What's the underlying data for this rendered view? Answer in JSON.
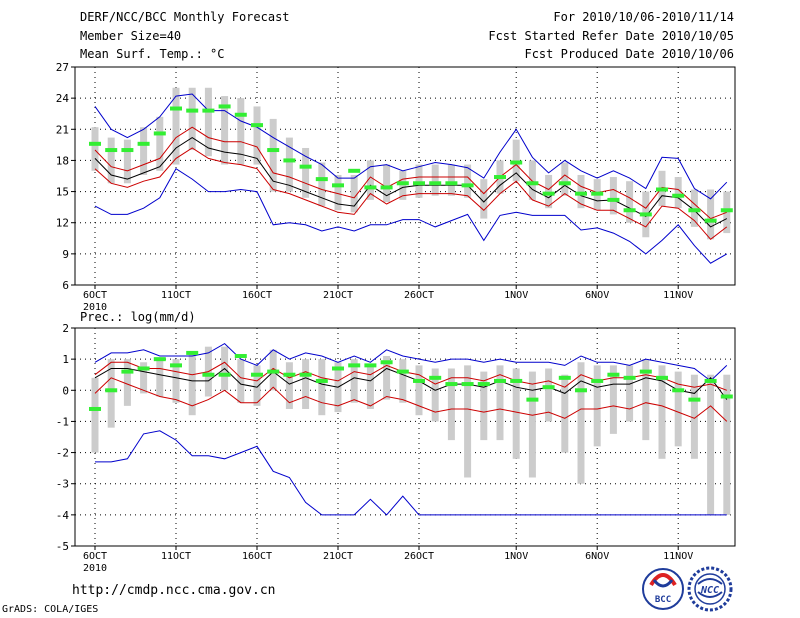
{
  "header": {
    "title": "DERF/NCC/BCC Monthly Forecast",
    "member_size": "Member Size=40",
    "variable": "Mean Surf. Temp.: °C",
    "period": "For 2010/10/06-2010/11/14",
    "started": "Fcst Started Refer Date 2010/10/05",
    "produced": "Fcst Produced Date 2010/10/06"
  },
  "footer": {
    "url": "http://cmdp.ncc.cma.gov.cn",
    "grads": "GrADS: COLA/IGES",
    "logo_left": "BCC",
    "logo_right": "NCC"
  },
  "colors": {
    "envelope": "#0000cc",
    "spread": "#cc0000",
    "mean": "#000000",
    "box": "#cccccc",
    "obs": "#33ee33"
  },
  "chart_data": [
    {
      "type": "line",
      "title": "Mean Surf. Temp.: °C",
      "xlabel": "",
      "ylabel": "",
      "ylim": [
        6,
        27
      ],
      "yticks": [
        6,
        9,
        12,
        15,
        18,
        21,
        24,
        27
      ],
      "grid": true,
      "xticks": [
        {
          "day": 0,
          "label": "6OCT",
          "sub": "2010"
        },
        {
          "day": 5,
          "label": "11OCT"
        },
        {
          "day": 10,
          "label": "16OCT"
        },
        {
          "day": 15,
          "label": "21OCT"
        },
        {
          "day": 20,
          "label": "26OCT"
        },
        {
          "day": 26,
          "label": "1NOV"
        },
        {
          "day": 31,
          "label": "6NOV"
        },
        {
          "day": 36,
          "label": "11NOV"
        }
      ],
      "series": [
        {
          "name": "max",
          "color": "#0000cc",
          "values": [
            23.2,
            21.0,
            20.2,
            21.0,
            22.2,
            24.2,
            24.4,
            22.8,
            22.8,
            21.8,
            21.2,
            20.2,
            19.3,
            18.4,
            17.6,
            16.3,
            16.3,
            17.4,
            17.6,
            17.0,
            17.4,
            17.8,
            17.6,
            17.3,
            16.3,
            18.8,
            21.0,
            18.3,
            16.8,
            18.0,
            17.0,
            16.3,
            17.0,
            16.3,
            15.3,
            18.3,
            18.2,
            15.3,
            14.3,
            15.9
          ]
        },
        {
          "name": "upper",
          "color": "#cc0000",
          "values": [
            19.0,
            17.4,
            17.0,
            17.6,
            18.2,
            20.2,
            21.2,
            20.2,
            19.8,
            19.8,
            19.3,
            16.8,
            16.4,
            15.8,
            15.2,
            14.8,
            14.4,
            16.4,
            15.4,
            16.2,
            16.4,
            16.4,
            16.4,
            16.4,
            14.8,
            16.4,
            17.6,
            16.0,
            15.2,
            16.6,
            15.5,
            14.9,
            15.2,
            14.4,
            13.4,
            15.4,
            15.2,
            13.8,
            12.4,
            13.0
          ]
        },
        {
          "name": "mean",
          "color": "#000000",
          "values": [
            18.2,
            16.6,
            16.2,
            16.8,
            17.4,
            19.2,
            20.2,
            19.2,
            18.8,
            18.6,
            18.2,
            16.0,
            15.6,
            15.0,
            14.4,
            13.8,
            13.6,
            15.6,
            14.6,
            15.4,
            15.6,
            15.6,
            15.6,
            15.6,
            14.0,
            15.6,
            16.8,
            15.2,
            14.4,
            15.6,
            14.6,
            14.1,
            14.2,
            13.4,
            12.6,
            14.6,
            14.4,
            13.2,
            11.6,
            12.4
          ]
        },
        {
          "name": "lower",
          "color": "#cc0000",
          "values": [
            17.2,
            15.8,
            15.4,
            16.0,
            16.4,
            18.2,
            19.2,
            18.2,
            17.8,
            17.6,
            17.2,
            15.2,
            14.8,
            14.2,
            13.6,
            13.0,
            12.8,
            14.8,
            13.8,
            14.6,
            14.8,
            14.8,
            14.8,
            14.6,
            13.2,
            14.8,
            16.0,
            14.2,
            13.6,
            14.8,
            13.8,
            13.2,
            13.2,
            12.4,
            11.6,
            13.6,
            13.4,
            12.2,
            10.4,
            11.6
          ]
        },
        {
          "name": "min",
          "color": "#0000cc",
          "values": [
            13.6,
            12.8,
            12.8,
            13.4,
            14.4,
            17.2,
            16.2,
            15.0,
            15.0,
            15.2,
            15.0,
            11.8,
            12.0,
            11.8,
            11.2,
            11.6,
            11.2,
            11.8,
            11.8,
            12.3,
            12.3,
            11.6,
            12.2,
            12.8,
            10.3,
            12.7,
            13.0,
            12.7,
            12.7,
            12.7,
            11.3,
            11.5,
            11.0,
            10.2,
            9.0,
            10.3,
            11.8,
            9.8,
            8.1,
            9.0
          ]
        }
      ],
      "boxes": {
        "top": [
          21.2,
          20.2,
          20.0,
          21.2,
          22.2,
          25.0,
          25.0,
          25.0,
          24.2,
          24.0,
          23.2,
          22.0,
          20.2,
          19.2,
          17.8,
          16.6,
          16.6,
          18.0,
          17.6,
          17.0,
          17.6,
          17.6,
          17.6,
          17.6,
          16.2,
          18.0,
          20.0,
          18.0,
          16.6,
          17.8,
          16.6,
          16.2,
          16.4,
          16.0,
          15.0,
          17.0,
          16.4,
          15.2,
          15.2,
          15.0
        ],
        "bottom": [
          17.0,
          15.8,
          15.8,
          16.6,
          17.0,
          17.6,
          19.0,
          18.4,
          17.6,
          17.6,
          17.6,
          15.0,
          15.0,
          14.4,
          13.6,
          13.2,
          13.0,
          14.2,
          14.0,
          14.2,
          14.4,
          14.6,
          14.6,
          14.4,
          12.4,
          14.8,
          16.0,
          14.2,
          13.4,
          14.6,
          13.4,
          13.2,
          12.8,
          12.0,
          10.6,
          13.6,
          13.4,
          11.6,
          10.4,
          11.0
        ]
      },
      "obs": [
        19.6,
        19.0,
        19.0,
        19.6,
        20.6,
        23.0,
        22.8,
        22.8,
        23.2,
        22.4,
        21.4,
        19.0,
        18.0,
        17.4,
        16.2,
        15.6,
        17.0,
        15.4,
        15.4,
        15.8,
        15.8,
        15.8,
        15.8,
        15.6,
        null,
        16.4,
        17.8,
        15.8,
        14.8,
        15.8,
        14.8,
        14.8,
        14.2,
        13.2,
        12.8,
        15.2,
        14.6,
        13.2,
        12.2,
        13.2
      ]
    },
    {
      "type": "line",
      "title": "Prec.: log(mm/d)",
      "xlabel": "",
      "ylabel": "",
      "ylim": [
        -5,
        2
      ],
      "yticks": [
        -5,
        -4,
        -3,
        -2,
        -1,
        0,
        1,
        2
      ],
      "grid": true,
      "xticks": [
        {
          "day": 0,
          "label": "6OCT",
          "sub": "2010"
        },
        {
          "day": 5,
          "label": "11OCT"
        },
        {
          "day": 10,
          "label": "16OCT"
        },
        {
          "day": 15,
          "label": "21OCT"
        },
        {
          "day": 20,
          "label": "26OCT"
        },
        {
          "day": 26,
          "label": "1NOV"
        },
        {
          "day": 31,
          "label": "6NOV"
        },
        {
          "day": 36,
          "label": "11NOV"
        }
      ],
      "series": [
        {
          "name": "max",
          "color": "#0000cc",
          "values": [
            0.9,
            1.2,
            1.2,
            1.3,
            1.1,
            1.1,
            1.1,
            1.2,
            1.5,
            1.0,
            0.8,
            1.3,
            1.0,
            1.2,
            1.1,
            0.9,
            1.1,
            0.9,
            1.3,
            1.1,
            1.0,
            0.9,
            1.0,
            1.0,
            0.9,
            1.0,
            0.9,
            0.9,
            0.9,
            0.8,
            1.1,
            0.9,
            0.9,
            0.8,
            1.0,
            0.9,
            0.8,
            0.7,
            0.3,
            0.8
          ]
        },
        {
          "name": "upper",
          "color": "#cc0000",
          "values": [
            0.5,
            0.9,
            0.9,
            0.7,
            0.7,
            0.6,
            0.5,
            0.6,
            0.9,
            0.4,
            0.3,
            0.7,
            0.4,
            0.6,
            0.4,
            0.3,
            0.6,
            0.5,
            0.8,
            0.6,
            0.5,
            0.2,
            0.4,
            0.4,
            0.3,
            0.5,
            0.3,
            0.2,
            0.3,
            0.1,
            0.5,
            0.3,
            0.4,
            0.4,
            0.5,
            0.4,
            0.2,
            0.1,
            0.2,
            0.0
          ]
        },
        {
          "name": "mean",
          "color": "#000000",
          "values": [
            0.4,
            0.7,
            0.7,
            0.6,
            0.5,
            0.4,
            0.3,
            0.3,
            0.7,
            0.2,
            0.1,
            0.6,
            0.2,
            0.4,
            0.2,
            0.1,
            0.4,
            0.3,
            0.7,
            0.5,
            0.3,
            0.0,
            0.2,
            0.2,
            0.1,
            0.3,
            0.1,
            0.0,
            0.1,
            -0.1,
            0.3,
            0.1,
            0.2,
            0.2,
            0.4,
            0.3,
            0.0,
            -0.1,
            0.4,
            -0.3
          ]
        },
        {
          "name": "lower",
          "color": "#cc0000",
          "values": [
            -0.1,
            0.4,
            0.2,
            0.0,
            -0.2,
            -0.3,
            -0.5,
            -0.3,
            0.0,
            -0.4,
            -0.4,
            0.1,
            -0.4,
            -0.2,
            -0.4,
            -0.5,
            -0.3,
            -0.5,
            -0.2,
            -0.3,
            -0.5,
            -0.7,
            -0.6,
            -0.6,
            -0.7,
            -0.6,
            -0.7,
            -0.8,
            -0.7,
            -0.9,
            -0.6,
            -0.6,
            -0.5,
            -0.6,
            -0.4,
            -0.5,
            -0.7,
            -0.9,
            -0.5,
            -1.0
          ]
        },
        {
          "name": "min",
          "color": "#0000cc",
          "values": [
            -2.3,
            -2.3,
            -2.2,
            -1.4,
            -1.3,
            -1.6,
            -2.1,
            -2.1,
            -2.2,
            -2.0,
            -1.8,
            -2.6,
            -2.8,
            -3.6,
            -4.0,
            -4.0,
            -4.0,
            -3.5,
            -4.0,
            -3.4,
            -4.0,
            -4.0,
            -4.0,
            -4.0,
            -4.0,
            -4.0,
            -4.0,
            -4.0,
            -4.0,
            -4.0,
            -4.0,
            -4.0,
            -4.0,
            -4.0,
            -4.0,
            -4.0,
            -4.0,
            -4.0,
            -4.0,
            -4.0
          ]
        }
      ],
      "boxes": {
        "top": [
          0.4,
          1.0,
          1.0,
          0.9,
          1.0,
          1.0,
          1.2,
          1.4,
          1.4,
          1.0,
          0.8,
          1.3,
          0.9,
          1.0,
          1.0,
          0.9,
          1.0,
          0.8,
          1.1,
          1.0,
          0.8,
          0.7,
          0.7,
          0.8,
          0.6,
          0.8,
          0.7,
          0.6,
          0.7,
          0.5,
          0.9,
          0.8,
          0.8,
          0.8,
          1.0,
          0.8,
          0.6,
          0.5,
          0.5,
          0.5
        ],
        "bottom": [
          -2.0,
          -1.2,
          -0.5,
          -0.1,
          -0.2,
          -0.4,
          -0.8,
          -0.2,
          0.0,
          -0.4,
          -0.5,
          0.0,
          -0.6,
          -0.6,
          -0.8,
          -0.7,
          -0.4,
          -0.6,
          -0.3,
          -0.4,
          -0.8,
          -1.0,
          -1.6,
          -2.8,
          -1.6,
          -1.6,
          -2.2,
          -2.8,
          -1.0,
          -2.0,
          -3.0,
          -1.8,
          -1.4,
          -1.0,
          -1.6,
          -2.2,
          -1.8,
          -2.2,
          -4.0,
          -4.0
        ]
      },
      "obs": [
        -0.6,
        0.0,
        0.6,
        0.7,
        1.0,
        0.8,
        1.2,
        0.5,
        0.5,
        1.1,
        0.5,
        0.6,
        0.5,
        0.5,
        0.3,
        0.7,
        0.8,
        0.8,
        0.9,
        0.6,
        0.3,
        0.4,
        0.2,
        0.2,
        0.2,
        0.3,
        0.3,
        -0.3,
        0.1,
        0.4,
        0.0,
        0.3,
        0.5,
        0.4,
        0.6,
        0.4,
        0.0,
        -0.3,
        0.3,
        -0.2
      ]
    }
  ]
}
